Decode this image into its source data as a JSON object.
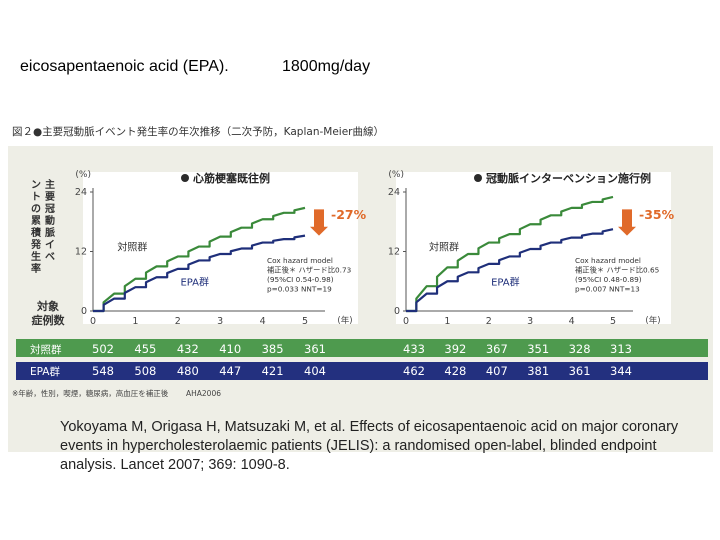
{
  "header": {
    "title_left": "eicosapentaenoic acid (EPA).",
    "title_right": "1800mg/day"
  },
  "figure": {
    "caption": "図２●主要冠動脈イベント発生率の年次推移（二次予防，Kaplan-Meier曲線）",
    "y_axis_title": "主要冠動脈イベントの累積発生率",
    "risk_label": "対象症例数",
    "footnote": "※年齢，性別，喫煙，糖尿病，高血圧を補正後",
    "source": "AHA2006"
  },
  "colors": {
    "control": "#3a8a3a",
    "epa": "#1f2f7a",
    "reduction": "#e06a2a",
    "control_row": "#4e9a4e",
    "epa_row": "#23307f",
    "panel": "#eeeee6"
  },
  "chart_data": [
    {
      "type": "line",
      "title": "心筋梗塞既往例",
      "y_unit": "(%)",
      "x_unit": "(年)",
      "ylim": [
        0,
        24
      ],
      "xlim": [
        0,
        5
      ],
      "yticks": [
        0,
        12,
        24
      ],
      "xticks": [
        0,
        1,
        2,
        3,
        4,
        5
      ],
      "series": [
        {
          "name": "対照群",
          "x": [
            0,
            0.5,
            1,
            1.5,
            2,
            2.5,
            3,
            3.5,
            4,
            4.5,
            5
          ],
          "values": [
            0,
            3.5,
            6.5,
            9,
            11,
            13,
            15,
            16.8,
            18.5,
            19.8,
            20.8
          ]
        },
        {
          "name": "EPA群",
          "x": [
            0,
            0.5,
            1,
            1.5,
            2,
            2.5,
            3,
            3.5,
            4,
            4.5,
            5
          ],
          "values": [
            0,
            2.5,
            4.8,
            6.8,
            8.5,
            10.2,
            11.5,
            12.6,
            13.8,
            14.5,
            15.2
          ]
        }
      ],
      "reduction": "-27%",
      "stats": [
        "Cox hazard model",
        "補正後＊ ハザード比0.73",
        "(95%CI 0.54-0.98)",
        "p=0.033  NNT=19"
      ],
      "risk_table": {
        "対照群": [
          502,
          455,
          432,
          410,
          385,
          361
        ],
        "EPA群": [
          548,
          508,
          480,
          447,
          421,
          404
        ]
      }
    },
    {
      "type": "line",
      "title": "冠動脈インターベンション施行例",
      "y_unit": "(%)",
      "x_unit": "(年)",
      "ylim": [
        0,
        24
      ],
      "xlim": [
        0,
        5
      ],
      "yticks": [
        0,
        12,
        24
      ],
      "xticks": [
        0,
        1,
        2,
        3,
        4,
        5
      ],
      "series": [
        {
          "name": "対照群",
          "x": [
            0,
            0.5,
            1,
            1.5,
            2,
            2.5,
            3,
            3.5,
            4,
            4.5,
            5
          ],
          "values": [
            0,
            5,
            8.8,
            11.5,
            13.8,
            15.5,
            17.5,
            19.3,
            20.8,
            22,
            23
          ]
        },
        {
          "name": "EPA群",
          "x": [
            0,
            0.5,
            1,
            1.5,
            2,
            2.5,
            3,
            3.5,
            4,
            4.5,
            5
          ],
          "values": [
            0,
            3.5,
            6,
            7.8,
            9.5,
            11,
            12.5,
            13.8,
            14.8,
            15.6,
            16.5
          ]
        }
      ],
      "reduction": "-35%",
      "stats": [
        "Cox hazard model",
        "補正後＊ ハザード比0.65",
        "(95%CI 0.48-0.89)",
        "p=0.007  NNT=13"
      ],
      "risk_table": {
        "対照群": [
          433,
          392,
          367,
          351,
          328,
          313
        ],
        "EPA群": [
          462,
          428,
          407,
          381,
          361,
          344
        ]
      }
    }
  ],
  "reference": {
    "text": "Yokoyama M, Origasa H, Matsuzaki M, et al. Effects of eicosapentaenoic acid on major coronary events in hypercholesterolaemic patients (JELIS): a randomised open-label, blinded endpoint analysis. Lancet 2007; 369: 1090-8."
  }
}
